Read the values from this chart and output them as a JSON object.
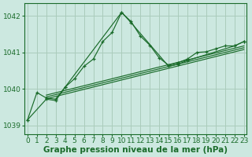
{
  "background_color": "#cce8e0",
  "grid_color": "#aaccbb",
  "line_color": "#1a6b2a",
  "title": "Graphe pression niveau de la mer (hPa)",
  "title_fontsize": 7.5,
  "tick_fontsize": 6.5,
  "xlim": [
    -0.3,
    23.3
  ],
  "ylim": [
    1038.75,
    1042.35
  ],
  "yticks": [
    1039,
    1040,
    1041,
    1042
  ],
  "xticks": [
    0,
    1,
    2,
    3,
    4,
    5,
    6,
    7,
    8,
    9,
    10,
    11,
    12,
    13,
    14,
    15,
    16,
    17,
    18,
    19,
    20,
    21,
    22,
    23
  ],
  "main_x": [
    0,
    1,
    2,
    3,
    4,
    5,
    6,
    7,
    8,
    9,
    10,
    11,
    12,
    13,
    14,
    15,
    16,
    17,
    18,
    19,
    20,
    21,
    22,
    23
  ],
  "main_y": [
    1039.15,
    1039.9,
    1039.75,
    1039.72,
    1040.05,
    1040.28,
    1040.62,
    1040.82,
    1041.3,
    1041.55,
    1042.1,
    1041.85,
    1041.45,
    1041.2,
    1040.85,
    1040.65,
    1040.72,
    1040.82,
    1041.0,
    1041.02,
    1041.1,
    1041.18,
    1041.18,
    1041.3
  ],
  "sparse_x": [
    0,
    2,
    3,
    4,
    10,
    11,
    15,
    16,
    17,
    22,
    23
  ],
  "sparse_y": [
    1039.15,
    1039.72,
    1039.68,
    1040.05,
    1042.1,
    1041.82,
    1040.62,
    1040.68,
    1040.78,
    1041.18,
    1041.3
  ],
  "trend_lines": [
    {
      "x0": 2,
      "y0": 1039.73,
      "x1": 23,
      "y1": 1041.08
    },
    {
      "x0": 2,
      "y0": 1039.78,
      "x1": 23,
      "y1": 1041.13
    },
    {
      "x0": 2,
      "y0": 1039.83,
      "x1": 23,
      "y1": 1041.18
    }
  ]
}
